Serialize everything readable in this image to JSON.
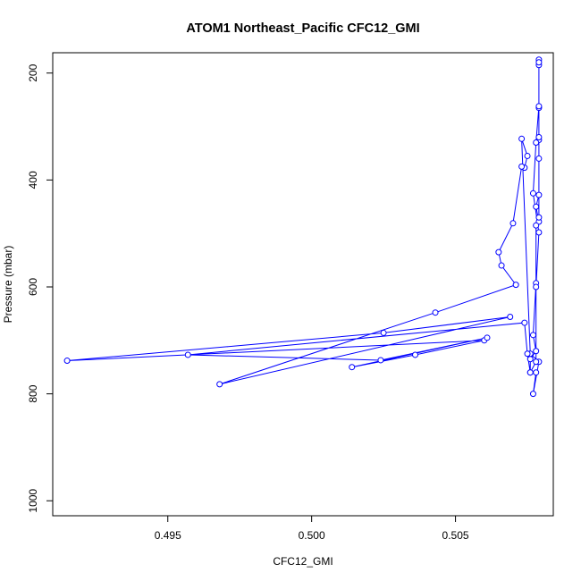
{
  "chart_data": {
    "type": "line",
    "title": "ATOM1 Northeast_Pacific CFC12_GMI",
    "xlabel": "CFC12_GMI",
    "ylabel": "Pressure (mbar)",
    "xlim": [
      0.491,
      0.5084
    ],
    "ylim": [
      1028,
      162
    ],
    "y_reversed": true,
    "x_ticks": [
      0.495,
      0.5,
      0.505
    ],
    "x_tick_labels": [
      "0.495",
      "0.500",
      "0.505"
    ],
    "y_ticks": [
      200,
      400,
      600,
      800,
      1000
    ],
    "y_tick_labels": [
      "200",
      "400",
      "600",
      "800",
      "1000"
    ],
    "grid": false,
    "legend": "none",
    "markers": "open-circle",
    "series_color": "#0000ff",
    "series": [
      {
        "x": [
          0.5079,
          0.5079,
          0.5079,
          0.5079,
          0.5079,
          0.5079,
          0.5078,
          0.5079,
          0.5078,
          0.5078,
          0.5077,
          0.5078,
          0.5076,
          0.5076,
          0.5078,
          0.5077,
          0.5079,
          0.5076,
          0.5073,
          0.5075,
          0.5074,
          0.5073,
          0.507,
          0.5065,
          0.5066,
          0.5071,
          0.5043,
          0.4968,
          0.5069,
          0.5025,
          0.4915,
          0.506,
          0.5036,
          0.5014,
          0.5061,
          0.5024,
          0.4957,
          0.5074,
          0.5075,
          0.5076,
          0.5078,
          0.5078,
          0.5079,
          0.5077,
          0.5078,
          0.5079,
          0.5079,
          0.5079,
          0.5079
        ],
        "y": [
          175,
          185,
          265,
          325,
          360,
          428,
          450,
          478,
          485,
          593,
          690,
          720,
          735,
          760,
          760,
          800,
          740,
          725,
          323,
          355,
          377,
          375,
          481,
          535,
          560,
          596,
          648,
          782,
          656,
          686,
          738,
          700,
          727,
          750,
          695,
          737,
          727,
          667,
          725,
          760,
          740,
          600,
          498,
          425,
          330,
          262,
          180,
          320,
          470
        ]
      }
    ]
  }
}
